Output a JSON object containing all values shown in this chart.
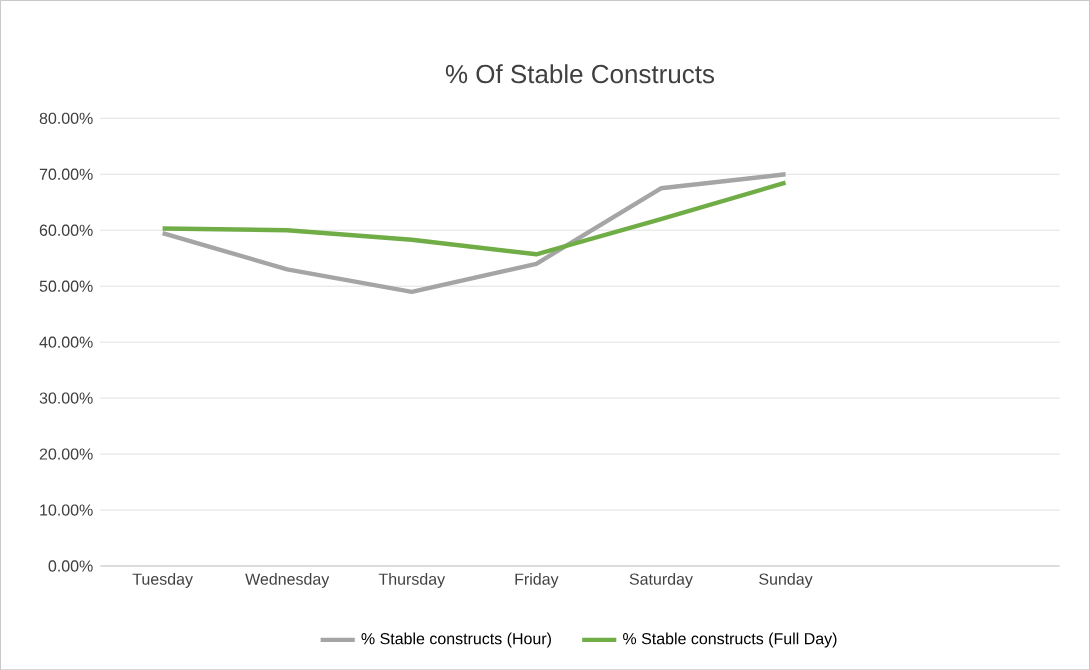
{
  "chart_data": {
    "type": "line",
    "title": "% Of Stable Constructs",
    "categories": [
      "Tuesday",
      "Wednesday",
      "Thursday",
      "Friday",
      "Saturday",
      "Sunday"
    ],
    "series": [
      {
        "name": "% Stable constructs (Hour)",
        "color": "#a5a5a5",
        "values": [
          59.5,
          53,
          49,
          54,
          67.5,
          70
        ]
      },
      {
        "name": "% Stable constructs (Full Day)",
        "color": "#70ad47",
        "values": [
          60.3,
          60,
          58.3,
          55.7,
          62,
          68.5
        ]
      }
    ],
    "ylim": [
      0,
      80
    ],
    "yticks": [
      {
        "value": 0,
        "label": "0.00%"
      },
      {
        "value": 10,
        "label": "10.00%"
      },
      {
        "value": 20,
        "label": "20.00%"
      },
      {
        "value": 30,
        "label": "30.00%"
      },
      {
        "value": 40,
        "label": "40.00%"
      },
      {
        "value": 50,
        "label": "50.00%"
      },
      {
        "value": 60,
        "label": "60.00%"
      },
      {
        "value": 70,
        "label": "70.00%"
      },
      {
        "value": 80,
        "label": "80.00%"
      }
    ],
    "grid": "y",
    "legend": "bottom",
    "marker": "none",
    "line_style": "solid"
  }
}
